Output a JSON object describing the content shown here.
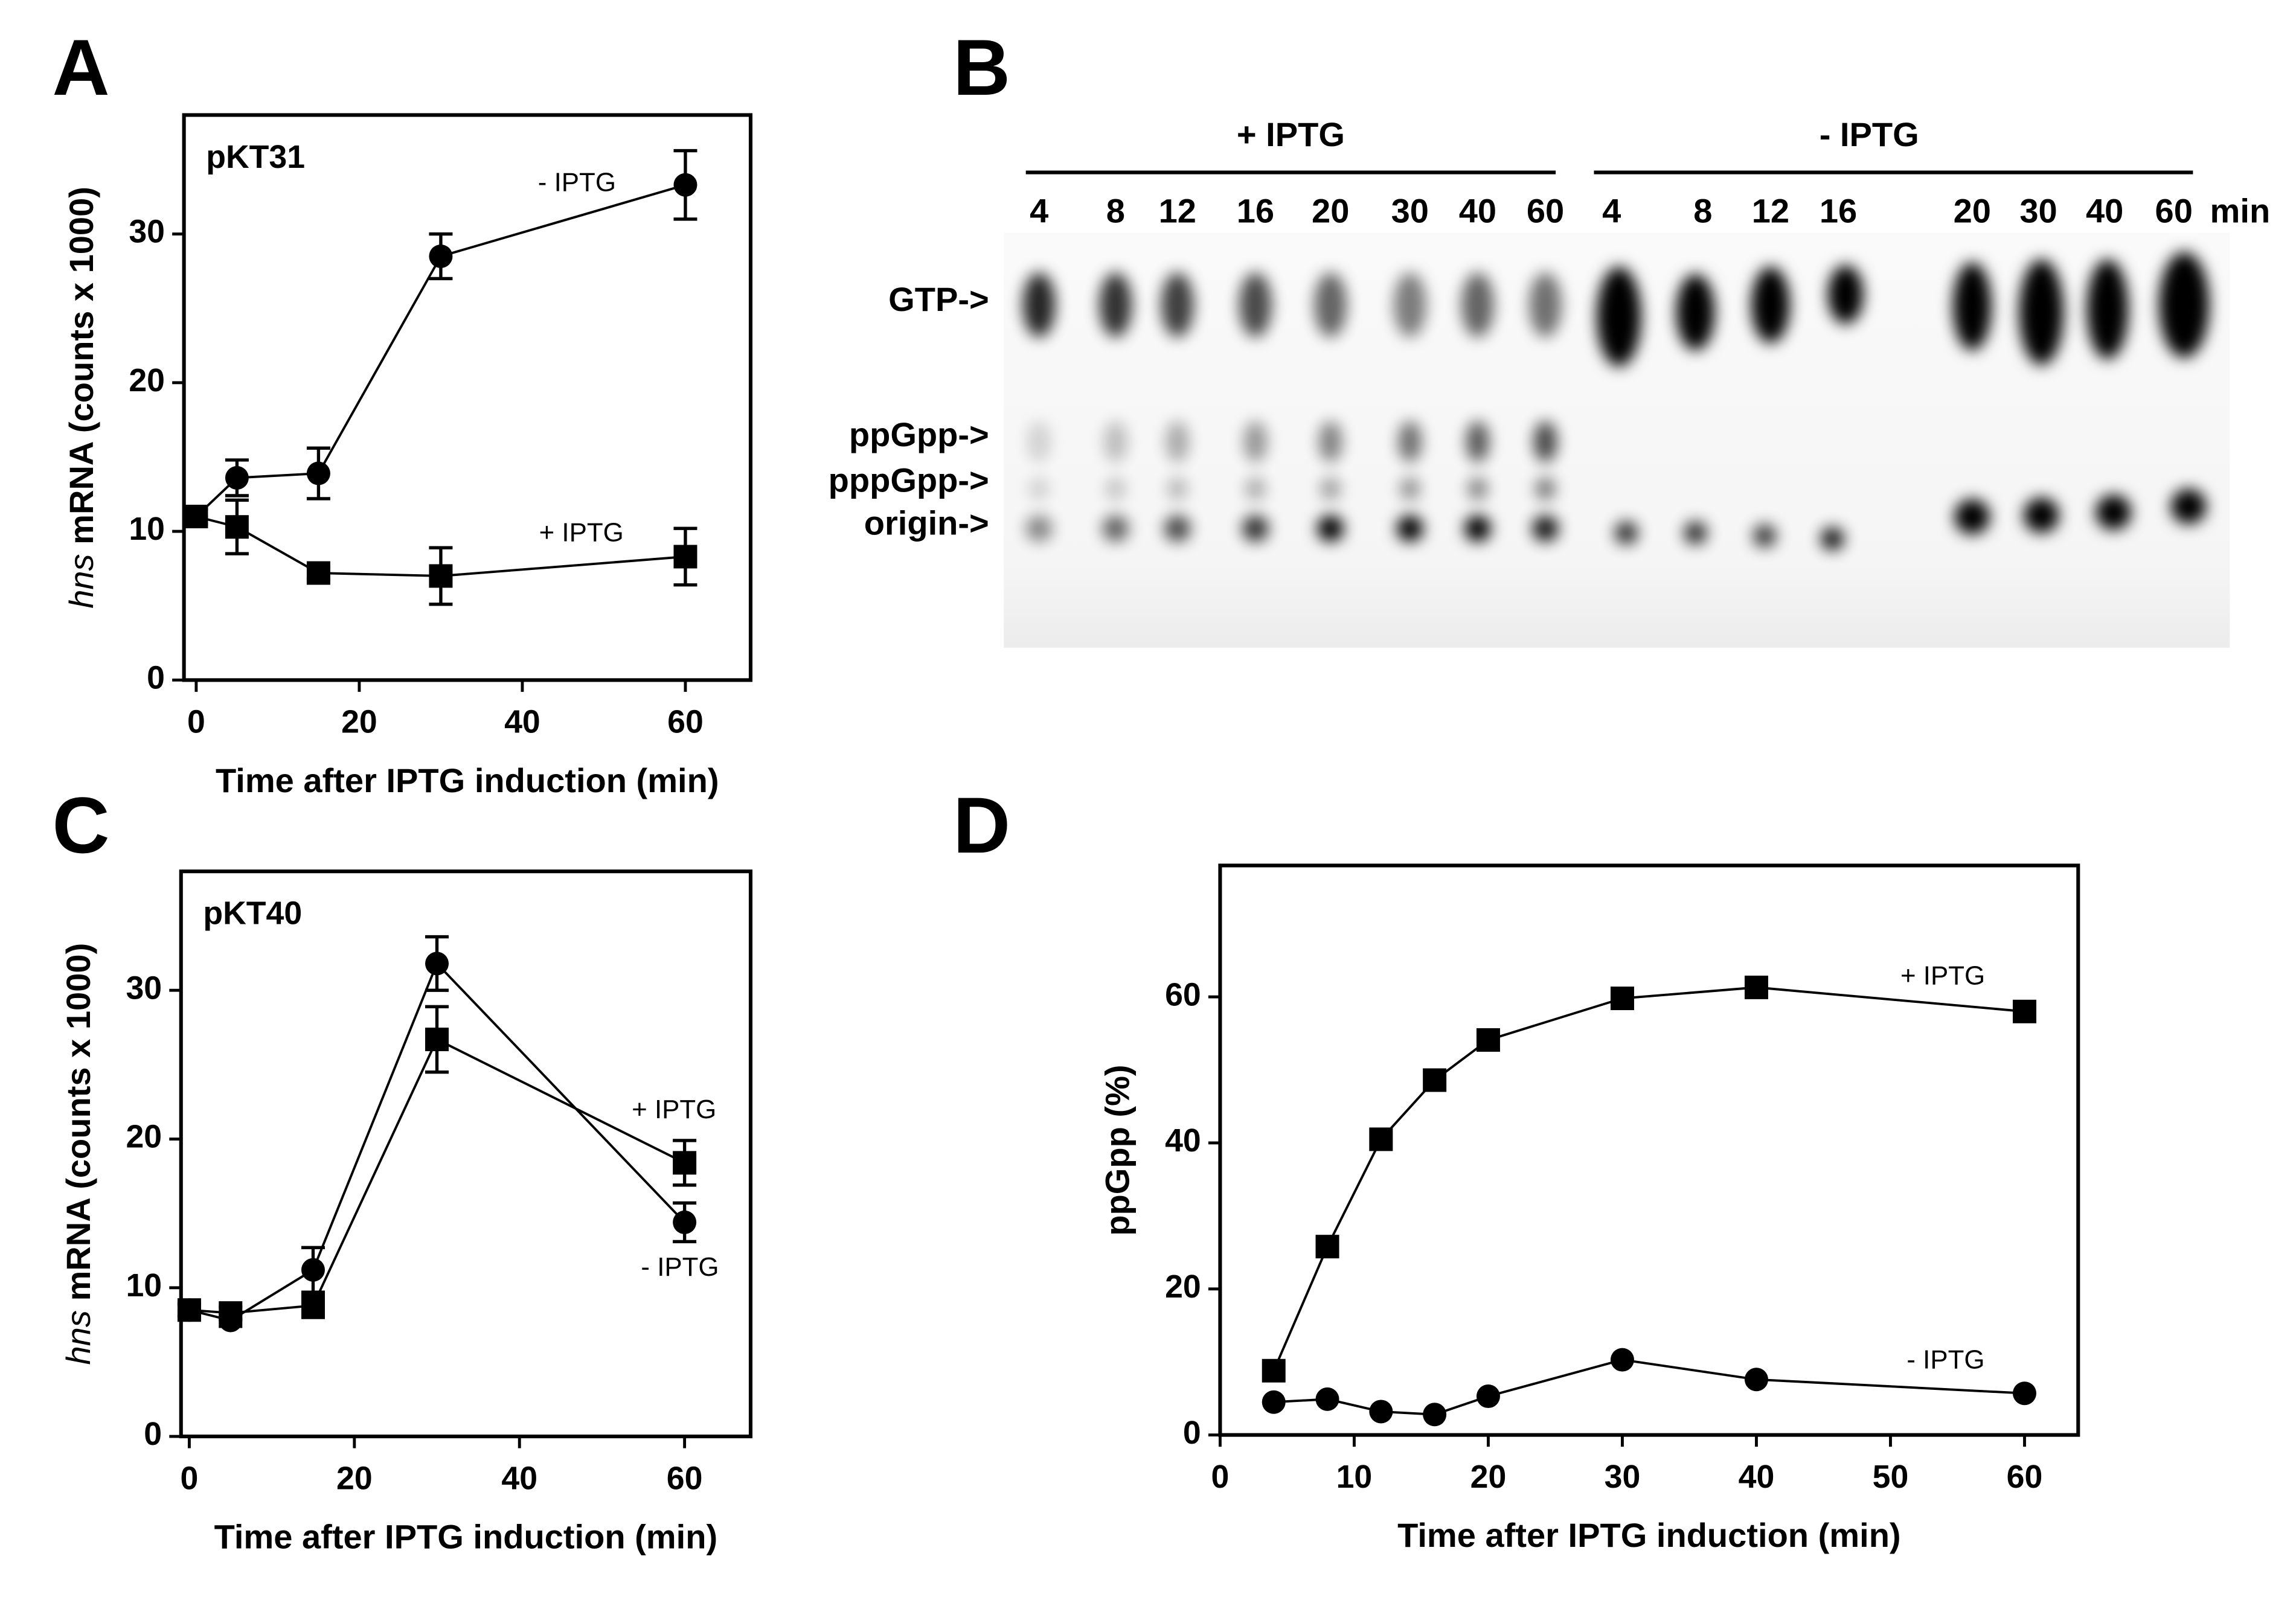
{
  "chart_data": [
    {
      "type": "line",
      "panel_label": "A",
      "annotation": "pKT31",
      "xlabel": "Time after IPTG induction (min)",
      "ylabel_gene": "hns",
      "ylabel": "mRNA (counts x 1000)",
      "x": [
        0,
        5,
        15,
        30,
        60
      ],
      "series": [
        {
          "name": "- IPTG",
          "marker": "circle",
          "color": "#000000",
          "values": [
            11,
            13.6,
            13.9,
            28.5,
            33.3
          ],
          "errors": [
            0.5,
            1.2,
            1.7,
            1.5,
            2.3
          ]
        },
        {
          "name": "+ IPTG",
          "marker": "square",
          "color": "#000000",
          "values": [
            11,
            10.3,
            7.2,
            7,
            8.3
          ],
          "errors": [
            0.5,
            1.8,
            0.4,
            1.9,
            1.9
          ]
        }
      ],
      "xlim": [
        -1.5,
        68
      ],
      "ylim": [
        0,
        38
      ],
      "xticks": [
        0,
        20,
        40,
        60
      ],
      "yticks": [
        0,
        10,
        20,
        30
      ]
    },
    {
      "type": "line",
      "panel_label": "C",
      "annotation": "pKT40",
      "xlabel": "Time after IPTG induction (min)",
      "ylabel_gene": "hns",
      "ylabel": "mRNA (counts x 1000)",
      "x": [
        0,
        5,
        15,
        30,
        60
      ],
      "series": [
        {
          "name": "+ IPTG",
          "marker": "square",
          "color": "#000000",
          "values": [
            8.5,
            8.3,
            8.8,
            26.7,
            18.4
          ],
          "errors": [
            0.4,
            0.4,
            0.8,
            2.2,
            1.5
          ]
        },
        {
          "name": "- IPTG",
          "marker": "circle",
          "color": "#000000",
          "values": [
            8.5,
            7.8,
            11.2,
            31.8,
            14.4
          ],
          "errors": [
            0.4,
            0.4,
            1.5,
            1.8,
            1.3
          ]
        }
      ],
      "xlim": [
        -1,
        68
      ],
      "ylim": [
        0,
        38
      ],
      "xticks": [
        0,
        20,
        40,
        60
      ],
      "yticks": [
        0,
        10,
        20,
        30
      ]
    },
    {
      "type": "line",
      "panel_label": "D",
      "xlabel": "Time after IPTG induction (min)",
      "ylabel": "ppGpp (%)",
      "x": [
        4,
        8,
        12,
        16,
        20,
        30,
        40,
        60
      ],
      "series": [
        {
          "name": "+ IPTG",
          "marker": "square",
          "color": "#000000",
          "values": [
            8.8,
            25.8,
            40.5,
            48.6,
            54.1,
            59.8,
            61.3,
            58
          ]
        },
        {
          "name": "- IPTG",
          "marker": "circle",
          "color": "#000000",
          "values": [
            4.5,
            4.9,
            3.2,
            2.8,
            5.3,
            10.3,
            7.6,
            5.7
          ]
        }
      ],
      "xlim": [
        0,
        64
      ],
      "ylim": [
        0,
        78
      ],
      "xticks": [
        0,
        10,
        20,
        30,
        40,
        50,
        60
      ],
      "yticks": [
        0,
        20,
        40,
        60
      ]
    }
  ],
  "gel": {
    "panel_label": "B",
    "groups": [
      "+ IPTG",
      "- IPTG"
    ],
    "lanes": [
      4,
      8,
      12,
      16,
      20,
      30,
      40,
      60,
      4,
      8,
      12,
      16,
      20,
      30,
      40,
      60
    ],
    "unit": "min",
    "bands": [
      "GTP->",
      "ppGpp->",
      "pppGpp->",
      "origin->"
    ]
  }
}
